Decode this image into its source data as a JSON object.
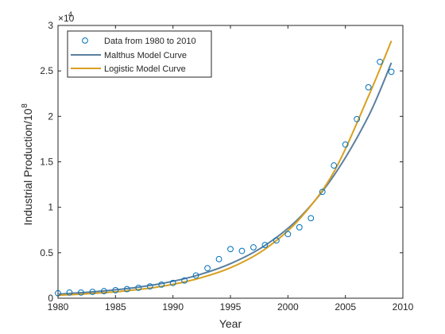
{
  "chart_data": {
    "type": "scatter",
    "title": "",
    "xlabel": "Year",
    "ylabel": "Industrial Production/10",
    "ylabel_exponent": "8",
    "y_multiplier_base": "×10",
    "y_multiplier_exponent": "4",
    "xlim": [
      1980,
      2010
    ],
    "ylim": [
      0,
      30000
    ],
    "x_ticks": [
      1980,
      1985,
      1990,
      1995,
      2000,
      2005,
      2010
    ],
    "y_ticks": [
      0,
      5000,
      10000,
      15000,
      20000,
      25000,
      30000
    ],
    "y_tick_labels": [
      "0",
      "0.5",
      "1",
      "1.5",
      "2",
      "2.5",
      "3"
    ],
    "grid": false,
    "legend_position": "top-left",
    "series": [
      {
        "name": "Data from 1980 to 2010",
        "kind": "markers",
        "color": "#0072BD",
        "marker": "open-circle",
        "x": [
          1980,
          1981,
          1982,
          1983,
          1984,
          1985,
          1986,
          1987,
          1988,
          1989,
          1990,
          1991,
          1992,
          1993,
          1994,
          1995,
          1996,
          1997,
          1998,
          1999,
          2000,
          2001,
          2002,
          2003,
          2004,
          2005,
          2006,
          2007,
          2008,
          2009
        ],
        "y": [
          550,
          620,
          620,
          700,
          780,
          880,
          1000,
          1150,
          1300,
          1500,
          1680,
          1950,
          2500,
          3300,
          4300,
          5400,
          5200,
          5600,
          5850,
          6350,
          7050,
          7800,
          8800,
          11700,
          14600,
          16900,
          19700,
          23200,
          26000,
          24900
        ]
      },
      {
        "name": "Malthus Model Curve",
        "kind": "line",
        "color": "#5B7F9E",
        "x": [
          1980,
          1983,
          1986,
          1989,
          1992,
          1995,
          1998,
          2001,
          2004,
          2007,
          2009
        ],
        "y": [
          450,
          700,
          1060,
          1620,
          2480,
          3800,
          5800,
          8850,
          13500,
          20000,
          25900
        ]
      },
      {
        "name": "Logistic Model Curve",
        "kind": "line",
        "color": "#D9A020",
        "x": [
          1980,
          1983,
          1986,
          1989,
          1992,
          1995,
          1998,
          2001,
          2004,
          2007,
          2009
        ],
        "y": [
          320,
          520,
          820,
          1300,
          2100,
          3350,
          5400,
          8700,
          13900,
          22200,
          28300
        ]
      }
    ]
  }
}
